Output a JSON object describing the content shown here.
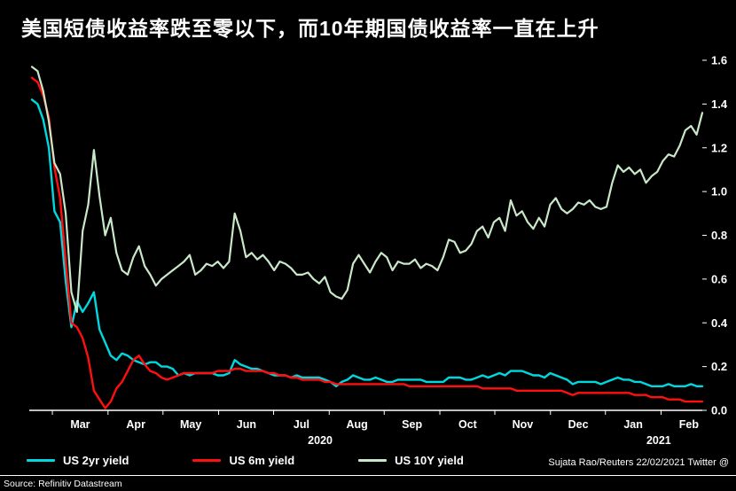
{
  "title": "美国短债收益率跌至零以下，而10年期国债收益率一直在上升",
  "source_note": "Source: Refinitiv Datastream",
  "credit": "Sujata Rao/Reuters 22/02/2021 Twitter @",
  "colors": {
    "background": "#000000",
    "axis": "#ffffff",
    "text": "#ffffff",
    "us_2yr": "#00d8e0",
    "us_6m": "#ff0f0f",
    "us_10y": "#c9e8c9"
  },
  "chart_data": {
    "type": "line",
    "title": "美国短债收益率跌至零以下，而10年期国债收益率一直在上升",
    "xlabel": "",
    "ylabel": "",
    "ylim": [
      0,
      1.6
    ],
    "yticks": [
      0.0,
      0.2,
      0.4,
      0.6,
      0.8,
      1.0,
      1.2,
      1.4,
      1.6
    ],
    "grid": false,
    "legend_position": "bottom",
    "x_ticks": [
      {
        "label": "Mar",
        "f": 0.072
      },
      {
        "label": "Apr",
        "f": 0.155
      },
      {
        "label": "May",
        "f": 0.237
      },
      {
        "label": "Jun",
        "f": 0.32
      },
      {
        "label": "Jul",
        "f": 0.402
      },
      {
        "label": "Aug",
        "f": 0.485
      },
      {
        "label": "Sep",
        "f": 0.567
      },
      {
        "label": "Oct",
        "f": 0.65
      },
      {
        "label": "Nov",
        "f": 0.732
      },
      {
        "label": "Dec",
        "f": 0.815
      },
      {
        "label": "Jan",
        "f": 0.897
      },
      {
        "label": "Feb",
        "f": 0.98
      }
    ],
    "x_year_ticks": [
      {
        "label": "2020",
        "f": 0.43
      },
      {
        "label": "2021",
        "f": 0.935
      }
    ],
    "series": [
      {
        "name": "US 2yr yield",
        "color": "#00d8e0",
        "stroke_width": 2.4,
        "values": [
          1.42,
          1.4,
          1.33,
          1.2,
          0.91,
          0.86,
          0.59,
          0.38,
          0.5,
          0.45,
          0.49,
          0.54,
          0.37,
          0.31,
          0.25,
          0.23,
          0.26,
          0.25,
          0.23,
          0.22,
          0.21,
          0.22,
          0.22,
          0.2,
          0.2,
          0.19,
          0.16,
          0.17,
          0.16,
          0.17,
          0.17,
          0.17,
          0.17,
          0.16,
          0.16,
          0.17,
          0.23,
          0.21,
          0.2,
          0.19,
          0.19,
          0.18,
          0.17,
          0.16,
          0.16,
          0.16,
          0.15,
          0.16,
          0.15,
          0.15,
          0.15,
          0.15,
          0.14,
          0.13,
          0.11,
          0.13,
          0.14,
          0.16,
          0.15,
          0.14,
          0.14,
          0.15,
          0.14,
          0.13,
          0.13,
          0.14,
          0.14,
          0.14,
          0.14,
          0.14,
          0.13,
          0.13,
          0.13,
          0.13,
          0.15,
          0.15,
          0.15,
          0.14,
          0.14,
          0.15,
          0.16,
          0.15,
          0.16,
          0.17,
          0.16,
          0.18,
          0.18,
          0.18,
          0.17,
          0.16,
          0.16,
          0.15,
          0.17,
          0.16,
          0.15,
          0.14,
          0.12,
          0.13,
          0.13,
          0.13,
          0.13,
          0.12,
          0.13,
          0.14,
          0.15,
          0.14,
          0.14,
          0.13,
          0.13,
          0.12,
          0.11,
          0.11,
          0.11,
          0.12,
          0.11,
          0.11,
          0.11,
          0.12,
          0.11,
          0.11
        ]
      },
      {
        "name": "US 6m yield",
        "color": "#ff0f0f",
        "stroke_width": 2.4,
        "values": [
          1.52,
          1.5,
          1.44,
          1.34,
          1.11,
          0.97,
          0.68,
          0.4,
          0.38,
          0.33,
          0.24,
          0.09,
          0.05,
          0.01,
          0.04,
          0.1,
          0.13,
          0.18,
          0.23,
          0.25,
          0.21,
          0.18,
          0.17,
          0.15,
          0.14,
          0.15,
          0.16,
          0.17,
          0.17,
          0.17,
          0.17,
          0.17,
          0.17,
          0.18,
          0.18,
          0.18,
          0.19,
          0.19,
          0.18,
          0.18,
          0.18,
          0.18,
          0.17,
          0.17,
          0.16,
          0.16,
          0.15,
          0.15,
          0.14,
          0.14,
          0.14,
          0.14,
          0.13,
          0.13,
          0.12,
          0.12,
          0.12,
          0.12,
          0.12,
          0.12,
          0.12,
          0.12,
          0.12,
          0.12,
          0.12,
          0.12,
          0.12,
          0.11,
          0.11,
          0.11,
          0.11,
          0.11,
          0.11,
          0.11,
          0.11,
          0.11,
          0.11,
          0.11,
          0.11,
          0.11,
          0.1,
          0.1,
          0.1,
          0.1,
          0.1,
          0.1,
          0.09,
          0.09,
          0.09,
          0.09,
          0.09,
          0.09,
          0.09,
          0.09,
          0.09,
          0.08,
          0.07,
          0.08,
          0.08,
          0.08,
          0.08,
          0.08,
          0.08,
          0.08,
          0.08,
          0.08,
          0.08,
          0.07,
          0.07,
          0.07,
          0.06,
          0.06,
          0.06,
          0.05,
          0.05,
          0.05,
          0.04,
          0.04,
          0.04,
          0.04
        ]
      },
      {
        "name": "US 10Y yield",
        "color": "#c9e8c9",
        "stroke_width": 2.2,
        "values": [
          1.57,
          1.55,
          1.46,
          1.32,
          1.13,
          1.08,
          0.9,
          0.54,
          0.45,
          0.82,
          0.94,
          1.19,
          0.98,
          0.8,
          0.88,
          0.72,
          0.64,
          0.62,
          0.7,
          0.75,
          0.66,
          0.62,
          0.57,
          0.6,
          0.62,
          0.64,
          0.66,
          0.68,
          0.71,
          0.62,
          0.64,
          0.67,
          0.66,
          0.68,
          0.65,
          0.68,
          0.9,
          0.82,
          0.7,
          0.72,
          0.69,
          0.71,
          0.68,
          0.64,
          0.68,
          0.67,
          0.65,
          0.62,
          0.62,
          0.63,
          0.6,
          0.58,
          0.61,
          0.54,
          0.52,
          0.51,
          0.55,
          0.67,
          0.71,
          0.67,
          0.63,
          0.68,
          0.72,
          0.7,
          0.64,
          0.68,
          0.67,
          0.67,
          0.69,
          0.65,
          0.67,
          0.66,
          0.64,
          0.7,
          0.78,
          0.77,
          0.72,
          0.73,
          0.76,
          0.82,
          0.84,
          0.79,
          0.86,
          0.88,
          0.82,
          0.96,
          0.89,
          0.91,
          0.86,
          0.83,
          0.88,
          0.84,
          0.94,
          0.97,
          0.92,
          0.9,
          0.92,
          0.95,
          0.94,
          0.96,
          0.93,
          0.92,
          0.93,
          1.04,
          1.12,
          1.09,
          1.11,
          1.08,
          1.1,
          1.04,
          1.07,
          1.09,
          1.14,
          1.17,
          1.16,
          1.21,
          1.28,
          1.3,
          1.26,
          1.36
        ]
      }
    ]
  }
}
